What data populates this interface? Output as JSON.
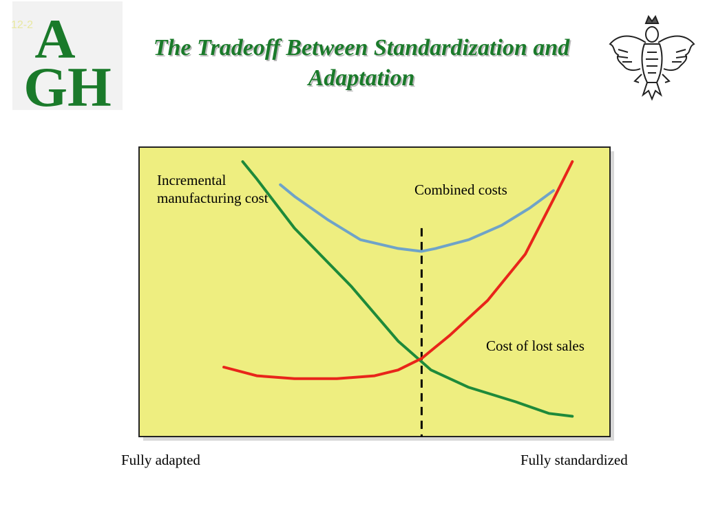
{
  "slide": {
    "number": "12-2",
    "logo_letters": {
      "top": "A",
      "bottom": "GH"
    },
    "title": "The Tradeoff Between Standardization and Adaptation"
  },
  "colors": {
    "title": "#1a7a2a",
    "panel": "#eeee80",
    "manufacturing": "#1e8a3a",
    "lost_sales": "#e8251a",
    "combined": "#6fa3c8",
    "dashed": "#000000"
  },
  "chart_data": {
    "type": "line",
    "grid": false,
    "x_axis": {
      "left_label": "Fully adapted",
      "right_label": "Fully standardized"
    },
    "series": [
      {
        "name": "Incremental manufacturing cost",
        "color_key": "manufacturing",
        "points": [
          [
            0.22,
            0.95
          ],
          [
            0.25,
            0.89
          ],
          [
            0.33,
            0.72
          ],
          [
            0.45,
            0.52
          ],
          [
            0.55,
            0.33
          ],
          [
            0.62,
            0.23
          ],
          [
            0.7,
            0.17
          ],
          [
            0.8,
            0.12
          ],
          [
            0.87,
            0.08
          ],
          [
            0.92,
            0.07
          ]
        ]
      },
      {
        "name": "Cost of lost sales",
        "color_key": "lost_sales",
        "points": [
          [
            0.18,
            0.24
          ],
          [
            0.25,
            0.21
          ],
          [
            0.33,
            0.2
          ],
          [
            0.42,
            0.2
          ],
          [
            0.5,
            0.21
          ],
          [
            0.55,
            0.23
          ],
          [
            0.6,
            0.27
          ],
          [
            0.66,
            0.35
          ],
          [
            0.74,
            0.47
          ],
          [
            0.82,
            0.63
          ],
          [
            0.88,
            0.82
          ],
          [
            0.92,
            0.95
          ]
        ]
      },
      {
        "name": "Combined costs",
        "color_key": "combined",
        "points": [
          [
            0.3,
            0.87
          ],
          [
            0.33,
            0.83
          ],
          [
            0.4,
            0.75
          ],
          [
            0.47,
            0.68
          ],
          [
            0.55,
            0.65
          ],
          [
            0.6,
            0.64
          ],
          [
            0.63,
            0.65
          ],
          [
            0.7,
            0.68
          ],
          [
            0.77,
            0.73
          ],
          [
            0.83,
            0.79
          ],
          [
            0.88,
            0.85
          ]
        ]
      }
    ],
    "optimum_x": 0.6
  },
  "labels": {
    "manufacturing": [
      "Incremental",
      "manufacturing cost"
    ],
    "combined": "Combined costs",
    "lost_sales": "Cost of lost sales",
    "fully_adapted": "Fully adapted",
    "fully_standardized": "Fully standardized"
  }
}
